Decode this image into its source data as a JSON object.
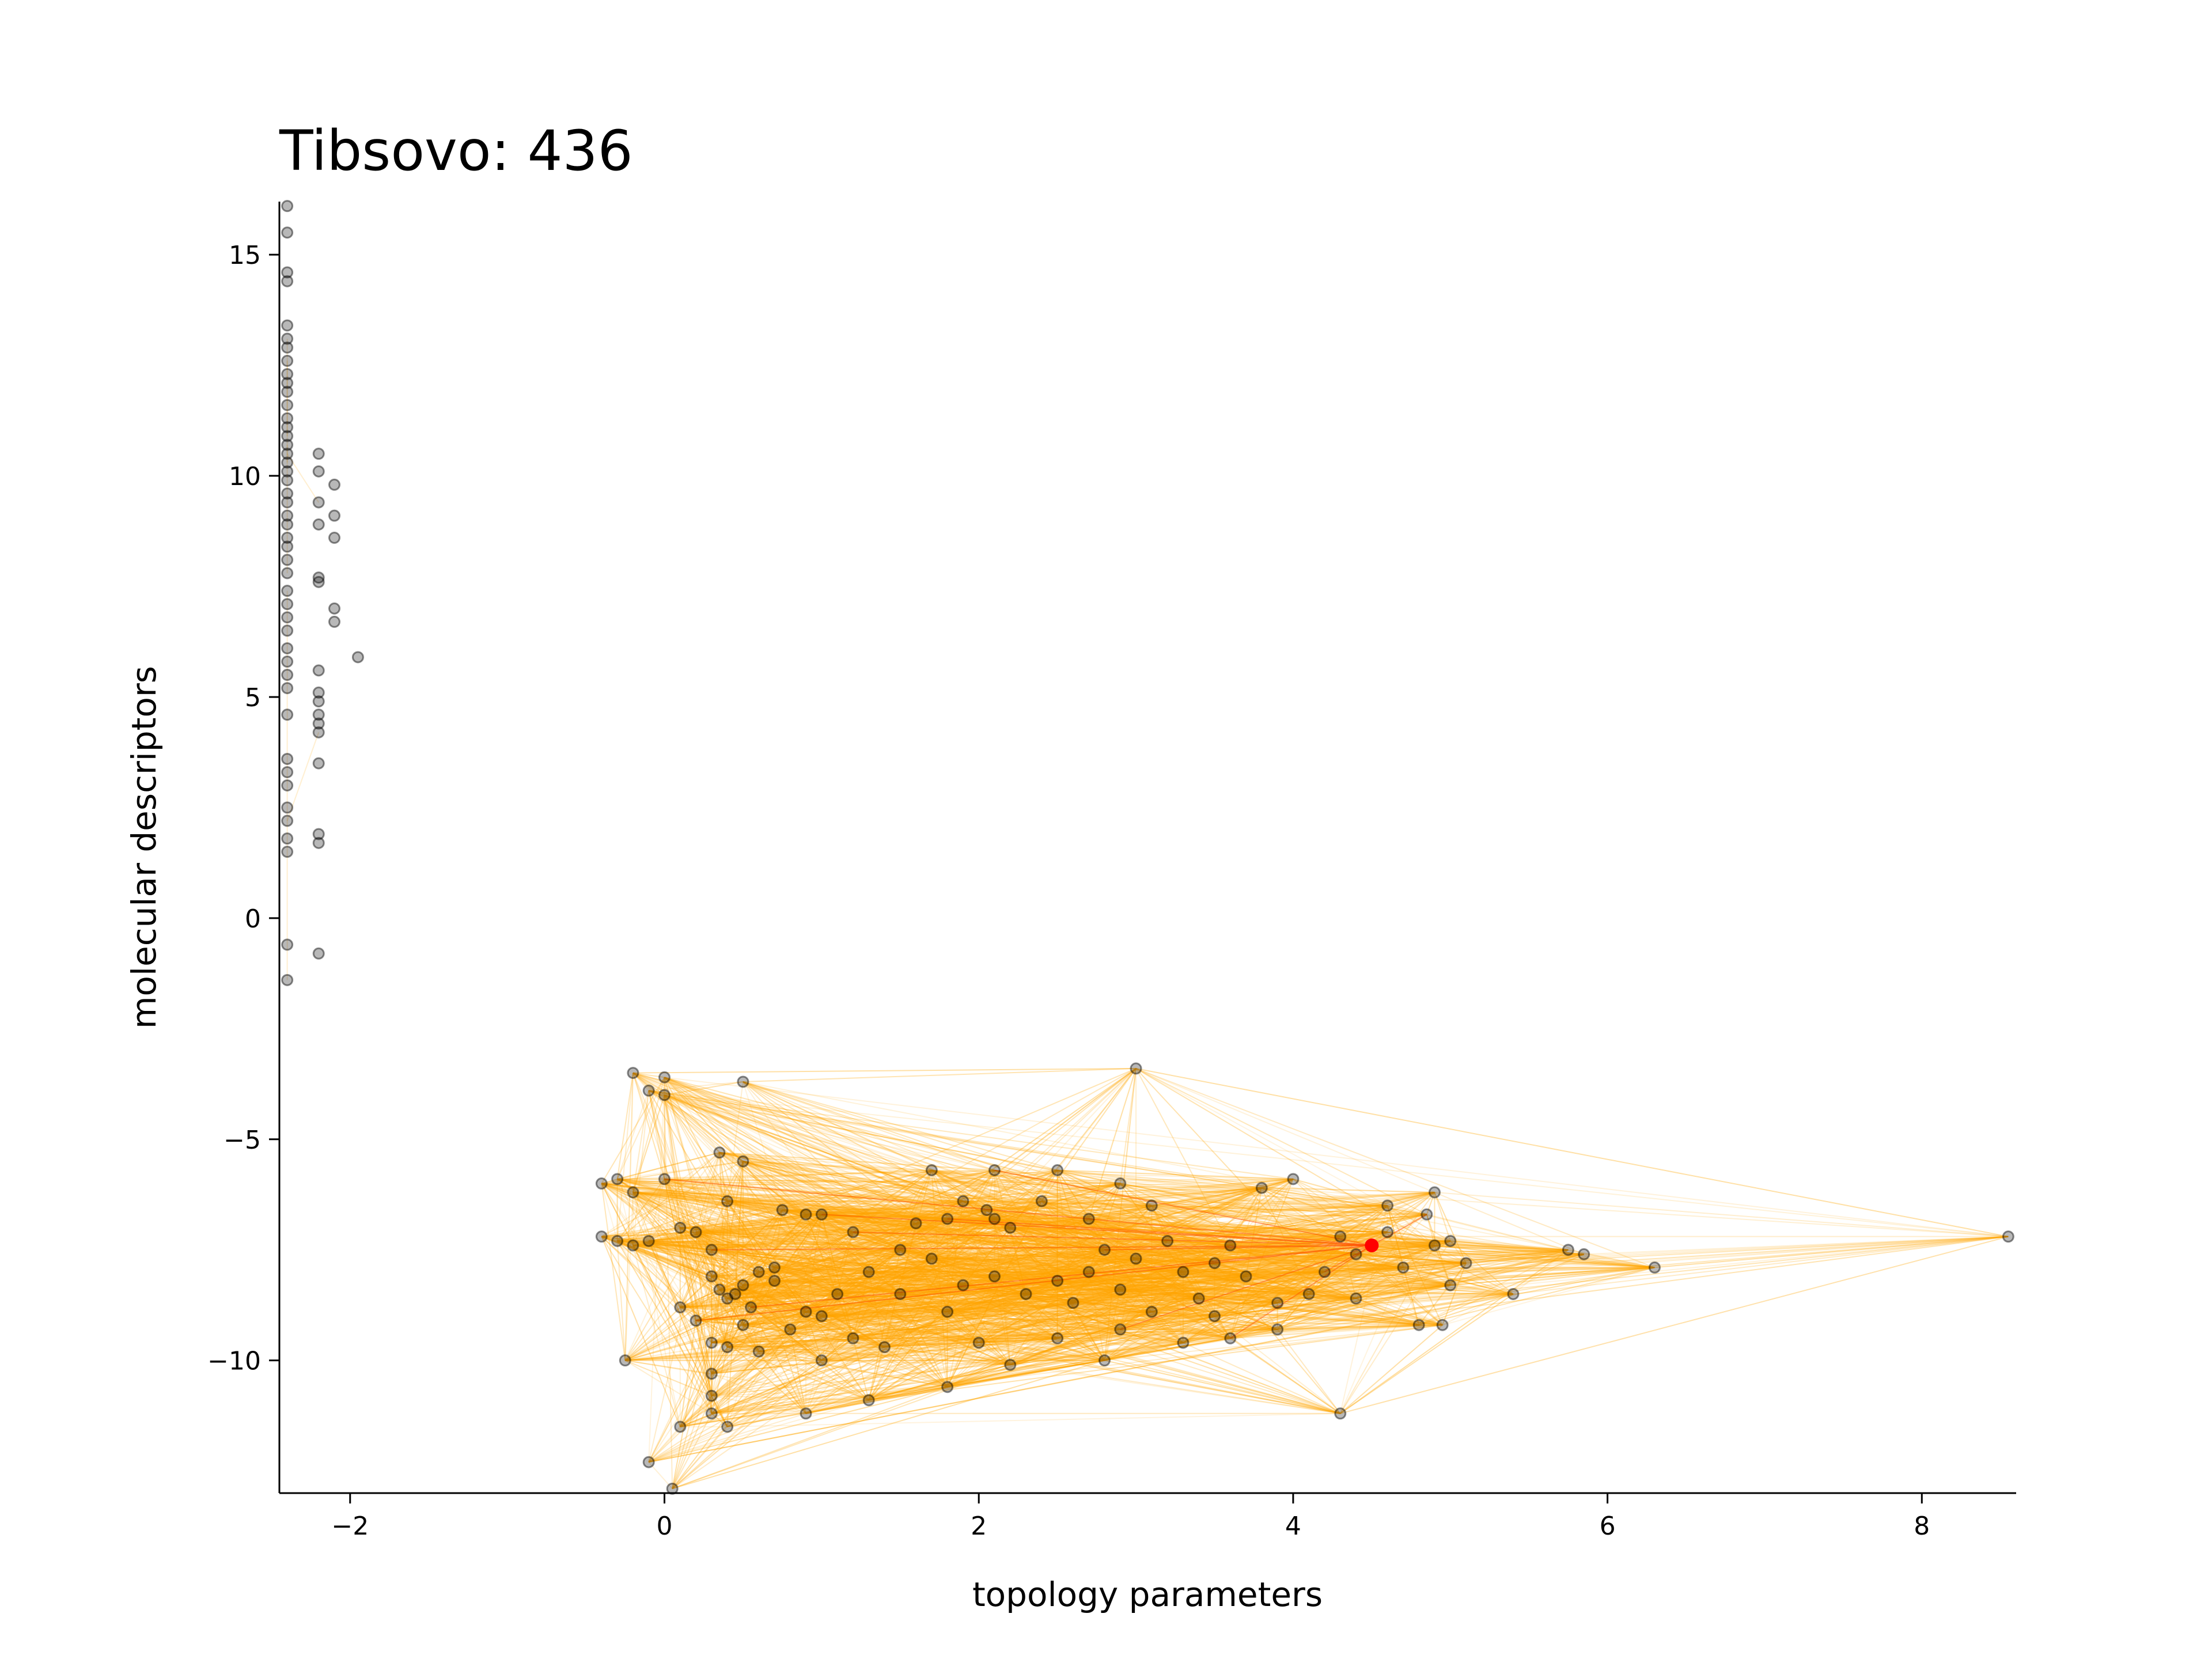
{
  "chart_data": {
    "type": "scatter",
    "title": "Tibsovo: 436",
    "xlabel": "topology parameters",
    "ylabel": "molecular descriptors",
    "xlim": [
      -2.45,
      8.6
    ],
    "ylim": [
      -13.0,
      16.2
    ],
    "xticks": [
      -2,
      0,
      2,
      4,
      6,
      8
    ],
    "yticks": [
      -10,
      -5,
      0,
      5,
      10,
      15
    ],
    "xtick_labels": [
      "−2",
      "0",
      "2",
      "4",
      "6",
      "8"
    ],
    "ytick_labels": [
      "−10",
      "−5",
      "0",
      "5",
      "10",
      "15"
    ],
    "grid": false,
    "colors": {
      "points": "#000000",
      "edges": "#ffa500",
      "highlight_edges": "#ff4500",
      "highlight_point": "#ff0000"
    },
    "highlight_point": {
      "x": 4.5,
      "y": -7.4
    },
    "isolated_points": [
      [
        -2.4,
        16.1
      ],
      [
        -2.4,
        15.5
      ],
      [
        -2.4,
        14.6
      ],
      [
        -2.4,
        14.4
      ],
      [
        -2.4,
        13.4
      ],
      [
        -2.4,
        13.1
      ],
      [
        -2.4,
        12.9
      ],
      [
        -2.4,
        12.6
      ],
      [
        -2.4,
        12.3
      ],
      [
        -2.4,
        12.1
      ],
      [
        -2.4,
        11.9
      ],
      [
        -2.4,
        11.6
      ],
      [
        -2.4,
        11.3
      ],
      [
        -2.4,
        11.1
      ],
      [
        -2.4,
        10.9
      ],
      [
        -2.4,
        10.7
      ],
      [
        -2.4,
        10.5
      ],
      [
        -2.4,
        10.3
      ],
      [
        -2.4,
        10.1
      ],
      [
        -2.4,
        9.9
      ],
      [
        -2.4,
        9.6
      ],
      [
        -2.4,
        9.4
      ],
      [
        -2.4,
        9.1
      ],
      [
        -2.4,
        8.9
      ],
      [
        -2.4,
        8.6
      ],
      [
        -2.4,
        8.4
      ],
      [
        -2.4,
        8.1
      ],
      [
        -2.4,
        7.8
      ],
      [
        -2.4,
        7.4
      ],
      [
        -2.4,
        7.1
      ],
      [
        -2.4,
        6.8
      ],
      [
        -2.4,
        6.5
      ],
      [
        -2.4,
        6.1
      ],
      [
        -2.4,
        5.8
      ],
      [
        -2.4,
        5.5
      ],
      [
        -2.4,
        5.2
      ],
      [
        -2.4,
        4.6
      ],
      [
        -2.4,
        3.6
      ],
      [
        -2.4,
        3.3
      ],
      [
        -2.4,
        3.0
      ],
      [
        -2.4,
        2.5
      ],
      [
        -2.4,
        2.2
      ],
      [
        -2.4,
        1.8
      ],
      [
        -2.4,
        1.5
      ],
      [
        -2.4,
        -0.6
      ],
      [
        -2.4,
        -1.4
      ],
      [
        -2.2,
        10.5
      ],
      [
        -2.2,
        10.1
      ],
      [
        -2.1,
        9.8
      ],
      [
        -2.2,
        9.4
      ],
      [
        -2.1,
        9.1
      ],
      [
        -2.2,
        8.9
      ],
      [
        -2.1,
        8.6
      ],
      [
        -2.2,
        7.7
      ],
      [
        -2.2,
        7.6
      ],
      [
        -2.1,
        7.0
      ],
      [
        -2.1,
        6.7
      ],
      [
        -2.2,
        5.6
      ],
      [
        -2.2,
        5.1
      ],
      [
        -2.2,
        4.9
      ],
      [
        -2.2,
        4.6
      ],
      [
        -2.2,
        4.4
      ],
      [
        -2.2,
        4.2
      ],
      [
        -2.2,
        3.5
      ],
      [
        -2.2,
        1.9
      ],
      [
        -2.2,
        1.7
      ],
      [
        -2.2,
        -0.8
      ],
      [
        -1.95,
        5.9
      ]
    ],
    "network_points": [
      [
        3.0,
        -3.4
      ],
      [
        -0.2,
        -3.5
      ],
      [
        0.0,
        -3.6
      ],
      [
        0.5,
        -3.7
      ],
      [
        -0.1,
        -3.9
      ],
      [
        0.0,
        -4.0
      ],
      [
        -0.4,
        -6.0
      ],
      [
        -0.3,
        -5.9
      ],
      [
        -0.2,
        -6.2
      ],
      [
        0.0,
        -5.9
      ],
      [
        -0.4,
        -7.2
      ],
      [
        -0.3,
        -7.3
      ],
      [
        -0.2,
        -7.4
      ],
      [
        -0.1,
        -7.3
      ],
      [
        0.1,
        -7.0
      ],
      [
        0.2,
        -7.1
      ],
      [
        0.3,
        -7.5
      ],
      [
        0.3,
        -8.1
      ],
      [
        0.35,
        -8.4
      ],
      [
        0.4,
        -8.6
      ],
      [
        0.45,
        -8.5
      ],
      [
        0.5,
        -8.3
      ],
      [
        0.6,
        -8.0
      ],
      [
        0.7,
        -8.2
      ],
      [
        0.35,
        -5.3
      ],
      [
        0.5,
        -5.5
      ],
      [
        0.4,
        -6.4
      ],
      [
        0.75,
        -6.6
      ],
      [
        1.0,
        -6.7
      ],
      [
        1.2,
        -7.1
      ],
      [
        0.2,
        -9.1
      ],
      [
        0.3,
        -9.6
      ],
      [
        0.4,
        -9.7
      ],
      [
        0.3,
        -10.3
      ],
      [
        0.3,
        -10.8
      ],
      [
        0.3,
        -11.2
      ],
      [
        0.4,
        -11.5
      ],
      [
        0.1,
        -11.5
      ],
      [
        -0.1,
        -12.3
      ],
      [
        0.05,
        -12.9
      ],
      [
        -0.25,
        -10.0
      ],
      [
        0.1,
        -8.8
      ],
      [
        0.5,
        -9.2
      ],
      [
        0.8,
        -9.3
      ],
      [
        0.9,
        -8.9
      ],
      [
        1.1,
        -8.5
      ],
      [
        1.3,
        -8.0
      ],
      [
        1.5,
        -8.5
      ],
      [
        1.7,
        -7.7
      ],
      [
        1.9,
        -8.3
      ],
      [
        2.1,
        -8.1
      ],
      [
        2.3,
        -8.5
      ],
      [
        2.5,
        -8.2
      ],
      [
        2.7,
        -8.0
      ],
      [
        2.9,
        -8.4
      ],
      [
        3.1,
        -8.9
      ],
      [
        3.3,
        -8.0
      ],
      [
        3.5,
        -7.8
      ],
      [
        3.7,
        -8.1
      ],
      [
        3.9,
        -8.7
      ],
      [
        4.1,
        -8.5
      ],
      [
        1.2,
        -9.5
      ],
      [
        1.4,
        -9.7
      ],
      [
        1.0,
        -10.0
      ],
      [
        0.9,
        -11.2
      ],
      [
        1.3,
        -10.9
      ],
      [
        1.8,
        -10.6
      ],
      [
        2.2,
        -10.1
      ],
      [
        2.5,
        -9.5
      ],
      [
        2.9,
        -9.3
      ],
      [
        3.3,
        -9.6
      ],
      [
        3.6,
        -9.5
      ],
      [
        3.9,
        -9.3
      ],
      [
        4.3,
        -11.2
      ],
      [
        1.7,
        -5.7
      ],
      [
        2.1,
        -5.7
      ],
      [
        2.5,
        -5.7
      ],
      [
        2.4,
        -6.4
      ],
      [
        2.05,
        -6.6
      ],
      [
        2.1,
        -6.8
      ],
      [
        1.9,
        -6.4
      ],
      [
        1.8,
        -6.8
      ],
      [
        2.9,
        -6.0
      ],
      [
        3.1,
        -6.5
      ],
      [
        2.7,
        -6.8
      ],
      [
        3.8,
        -6.1
      ],
      [
        4.0,
        -5.9
      ],
      [
        4.3,
        -7.2
      ],
      [
        4.4,
        -7.6
      ],
      [
        4.6,
        -7.1
      ],
      [
        4.6,
        -6.5
      ],
      [
        4.9,
        -6.2
      ],
      [
        4.85,
        -6.7
      ],
      [
        4.9,
        -7.4
      ],
      [
        5.0,
        -7.3
      ],
      [
        5.1,
        -7.8
      ],
      [
        5.0,
        -8.3
      ],
      [
        5.4,
        -8.5
      ],
      [
        4.95,
        -9.2
      ],
      [
        5.75,
        -7.5
      ],
      [
        5.85,
        -7.6
      ],
      [
        6.3,
        -7.9
      ],
      [
        8.55,
        -7.2
      ],
      [
        3.2,
        -7.3
      ],
      [
        2.8,
        -7.5
      ],
      [
        2.2,
        -7.0
      ],
      [
        1.6,
        -6.9
      ],
      [
        0.9,
        -6.7
      ],
      [
        1.5,
        -7.5
      ],
      [
        3.0,
        -7.7
      ],
      [
        3.6,
        -7.4
      ],
      [
        4.2,
        -8.0
      ],
      [
        4.7,
        -7.9
      ],
      [
        3.4,
        -8.6
      ],
      [
        2.6,
        -8.7
      ],
      [
        1.8,
        -8.9
      ],
      [
        1.0,
        -9.0
      ],
      [
        0.6,
        -9.8
      ],
      [
        2.0,
        -9.6
      ],
      [
        2.8,
        -10.0
      ],
      [
        3.5,
        -9.0
      ],
      [
        4.4,
        -8.6
      ],
      [
        4.8,
        -9.2
      ],
      [
        0.7,
        -7.9
      ],
      [
        0.55,
        -8.8
      ]
    ]
  }
}
